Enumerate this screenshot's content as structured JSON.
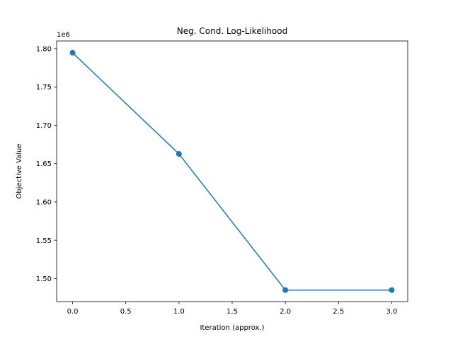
{
  "chart_data": {
    "type": "line",
    "title": "Neg. Cond. Log-Likelihood",
    "xlabel": "Iteration (approx.)",
    "ylabel": "Objective Value",
    "y_offset_label": "1e6",
    "x": [
      0,
      1,
      2,
      3
    ],
    "series": [
      {
        "values": [
          1794600,
          1662600,
          1485000,
          1485000
        ],
        "color": "#1f77b4",
        "marker": "circle"
      }
    ],
    "xlim": [
      -0.15,
      3.15
    ],
    "ylim": [
      1470000,
      1810000
    ],
    "x_ticks": [
      0,
      0.5,
      1,
      1.5,
      2,
      2.5,
      3
    ],
    "x_tick_labels": [
      "0.0",
      "0.5",
      "1.0",
      "1.5",
      "2.0",
      "2.5",
      "3.0"
    ],
    "y_ticks": [
      1500000,
      1550000,
      1600000,
      1650000,
      1700000,
      1750000,
      1800000
    ],
    "y_tick_labels": [
      "1.50",
      "1.55",
      "1.60",
      "1.65",
      "1.70",
      "1.75",
      "1.80"
    ],
    "grid": false,
    "legend": "none"
  }
}
